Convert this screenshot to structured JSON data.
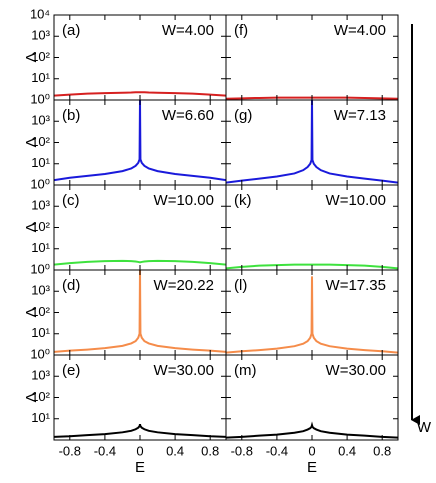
{
  "chart_data": [
    {
      "type": "line",
      "label": "(a)",
      "annotation": "W=4.00",
      "ylabel": "Λ",
      "color": "#d62020",
      "log_y": true,
      "x": [
        -0.98,
        -0.8,
        -0.6,
        -0.4,
        -0.2,
        -0.1,
        -0.05,
        -0.02,
        -0.005,
        0,
        0.005,
        0.02,
        0.05,
        0.1,
        0.2,
        0.4,
        0.6,
        0.8,
        0.98
      ],
      "values": [
        1.6,
        1.8,
        2.0,
        2.1,
        2.2,
        2.25,
        2.3,
        2.3,
        2.3,
        2.3,
        2.3,
        2.3,
        2.3,
        2.25,
        2.2,
        2.1,
        2.0,
        1.8,
        1.6
      ],
      "xlim": [
        -0.98,
        0.98
      ],
      "ylim": [
        1,
        10000
      ],
      "yticks": [
        {
          "value": 1,
          "label": "10⁰"
        },
        {
          "value": 10,
          "label": "10¹"
        },
        {
          "value": 100,
          "label": "10²"
        },
        {
          "value": 1000,
          "label": "10³"
        },
        {
          "value": 10000,
          "label": "10⁴"
        }
      ]
    },
    {
      "type": "line",
      "label": "(b)",
      "annotation": "W=6.60",
      "ylabel": "Λ",
      "color": "#1a1adb",
      "log_y": true,
      "x": [
        -0.98,
        -0.8,
        -0.6,
        -0.4,
        -0.2,
        -0.1,
        -0.05,
        -0.02,
        -0.005,
        0,
        0.005,
        0.02,
        0.05,
        0.1,
        0.2,
        0.4,
        0.6,
        0.8,
        0.98
      ],
      "values": [
        1.7,
        2.2,
        2.7,
        3.3,
        4.5,
        6,
        8,
        11,
        16,
        10000,
        16,
        11,
        8,
        6,
        4.5,
        3.3,
        2.7,
        2.2,
        1.7
      ],
      "xlim": [
        -0.98,
        0.98
      ],
      "ylim": [
        1,
        10000
      ],
      "yticks": [
        {
          "value": 1,
          "label": "10⁰"
        },
        {
          "value": 10,
          "label": "10¹"
        },
        {
          "value": 100,
          "label": "10²"
        },
        {
          "value": 1000,
          "label": "10³"
        }
      ]
    },
    {
      "type": "line",
      "label": "(c)",
      "annotation": "W=10.00",
      "ylabel": "Λ",
      "color": "#3ee23e",
      "log_y": true,
      "x": [
        -0.98,
        -0.8,
        -0.6,
        -0.4,
        -0.2,
        -0.1,
        -0.05,
        -0.02,
        -0.005,
        0,
        0.005,
        0.02,
        0.05,
        0.1,
        0.2,
        0.4,
        0.6,
        0.8,
        0.98
      ],
      "values": [
        1.8,
        2.1,
        2.4,
        2.6,
        2.7,
        2.6,
        2.5,
        2.4,
        2.3,
        2.3,
        2.3,
        2.4,
        2.5,
        2.6,
        2.7,
        2.6,
        2.4,
        2.1,
        1.8
      ],
      "xlim": [
        -0.98,
        0.98
      ],
      "ylim": [
        1,
        10000
      ],
      "yticks": [
        {
          "value": 1,
          "label": "10⁰"
        },
        {
          "value": 10,
          "label": "10¹"
        },
        {
          "value": 100,
          "label": "10²"
        },
        {
          "value": 1000,
          "label": "10³"
        }
      ]
    },
    {
      "type": "line",
      "label": "(d)",
      "annotation": "W=20.22",
      "ylabel": "Λ",
      "color": "#f58c4a",
      "log_y": true,
      "x": [
        -0.98,
        -0.8,
        -0.6,
        -0.4,
        -0.2,
        -0.1,
        -0.05,
        -0.02,
        -0.005,
        0,
        0.005,
        0.02,
        0.05,
        0.1,
        0.2,
        0.4,
        0.6,
        0.8,
        0.98
      ],
      "values": [
        1.4,
        1.6,
        1.8,
        2.1,
        2.7,
        3.5,
        4.5,
        6.5,
        10,
        10000,
        10,
        6.5,
        4.5,
        3.5,
        2.7,
        2.1,
        1.8,
        1.6,
        1.4
      ],
      "xlim": [
        -0.98,
        0.98
      ],
      "ylim": [
        1,
        10000
      ],
      "yticks": [
        {
          "value": 1,
          "label": "10⁰"
        },
        {
          "value": 10,
          "label": "10¹"
        },
        {
          "value": 100,
          "label": "10²"
        },
        {
          "value": 1000,
          "label": "10³"
        }
      ]
    },
    {
      "type": "line",
      "label": "(e)",
      "annotation": "W=30.00",
      "ylabel": "Λ",
      "xlabel": "E",
      "color": "#000000",
      "log_y": true,
      "x": [
        -0.98,
        -0.8,
        -0.6,
        -0.4,
        -0.2,
        -0.1,
        -0.05,
        -0.02,
        -0.005,
        0,
        0.005,
        0.02,
        0.05,
        0.1,
        0.2,
        0.4,
        0.6,
        0.8,
        0.98
      ],
      "values": [
        1.4,
        1.5,
        1.7,
        1.9,
        2.3,
        2.7,
        3.2,
        3.8,
        4.5,
        5.5,
        4.5,
        3.8,
        3.2,
        2.7,
        2.3,
        1.9,
        1.7,
        1.5,
        1.4
      ],
      "xlim": [
        -0.98,
        0.98
      ],
      "ylim": [
        1,
        10000
      ],
      "xticks": [
        -0.8,
        -0.4,
        0,
        0.4,
        0.8
      ],
      "yticks": [
        {
          "value": 10,
          "label": "10¹"
        },
        {
          "value": 100,
          "label": "10²"
        },
        {
          "value": 1000,
          "label": "10³"
        }
      ]
    },
    {
      "type": "line",
      "label": "(f)",
      "annotation": "W=4.00",
      "color": "#d62020",
      "log_y": true,
      "x": [
        -0.98,
        -0.8,
        -0.6,
        -0.4,
        -0.2,
        -0.1,
        -0.05,
        -0.02,
        -0.005,
        0,
        0.005,
        0.02,
        0.05,
        0.1,
        0.2,
        0.4,
        0.6,
        0.8,
        0.98
      ],
      "values": [
        1.15,
        1.2,
        1.25,
        1.3,
        1.3,
        1.3,
        1.3,
        1.3,
        1.3,
        1.3,
        1.3,
        1.3,
        1.3,
        1.3,
        1.3,
        1.3,
        1.25,
        1.2,
        1.15
      ],
      "xlim": [
        -0.98,
        0.98
      ],
      "ylim": [
        1,
        10000
      ]
    },
    {
      "type": "line",
      "label": "(g)",
      "annotation": "W=7.13",
      "color": "#1a1adb",
      "log_y": true,
      "x": [
        -0.98,
        -0.8,
        -0.6,
        -0.4,
        -0.2,
        -0.1,
        -0.05,
        -0.02,
        -0.005,
        0,
        0.005,
        0.02,
        0.05,
        0.1,
        0.2,
        0.4,
        0.6,
        0.8,
        0.98
      ],
      "values": [
        1.3,
        1.6,
        2,
        2.5,
        3.5,
        5,
        7,
        10,
        15,
        10000,
        15,
        10,
        7,
        5,
        3.5,
        2.5,
        2,
        1.6,
        1.3
      ],
      "xlim": [
        -0.98,
        0.98
      ],
      "ylim": [
        1,
        10000
      ]
    },
    {
      "type": "line",
      "label": "(k)",
      "annotation": "W=10.00",
      "color": "#3ee23e",
      "log_y": true,
      "x": [
        -0.98,
        -0.8,
        -0.6,
        -0.4,
        -0.2,
        -0.1,
        -0.05,
        -0.02,
        -0.005,
        0,
        0.005,
        0.02,
        0.05,
        0.1,
        0.2,
        0.4,
        0.6,
        0.8,
        0.98
      ],
      "values": [
        1.2,
        1.4,
        1.6,
        1.7,
        1.8,
        1.8,
        1.8,
        1.8,
        1.8,
        1.8,
        1.8,
        1.8,
        1.8,
        1.8,
        1.8,
        1.7,
        1.6,
        1.4,
        1.2
      ],
      "xlim": [
        -0.98,
        0.98
      ],
      "ylim": [
        1,
        10000
      ]
    },
    {
      "type": "line",
      "label": "(l)",
      "annotation": "W=17.35",
      "color": "#f58c4a",
      "log_y": true,
      "x": [
        -0.98,
        -0.8,
        -0.6,
        -0.4,
        -0.2,
        -0.1,
        -0.05,
        -0.02,
        -0.005,
        0,
        0.005,
        0.02,
        0.05,
        0.1,
        0.2,
        0.4,
        0.6,
        0.8,
        0.98
      ],
      "values": [
        1.3,
        1.5,
        1.7,
        2,
        2.6,
        3.4,
        4.5,
        6.5,
        10,
        5000,
        10,
        6.5,
        4.5,
        3.4,
        2.6,
        2,
        1.7,
        1.5,
        1.3
      ],
      "xlim": [
        -0.98,
        0.98
      ],
      "ylim": [
        1,
        10000
      ]
    },
    {
      "type": "line",
      "label": "(m)",
      "annotation": "W=30.00",
      "xlabel": "E",
      "color": "#000000",
      "log_y": true,
      "x": [
        -0.98,
        -0.8,
        -0.6,
        -0.4,
        -0.2,
        -0.1,
        -0.05,
        -0.02,
        -0.005,
        0,
        0.005,
        0.02,
        0.05,
        0.1,
        0.2,
        0.4,
        0.6,
        0.8,
        0.98
      ],
      "values": [
        1.3,
        1.4,
        1.6,
        1.8,
        2.2,
        2.6,
        3.1,
        3.6,
        4.2,
        5,
        4.2,
        3.6,
        3.1,
        2.6,
        2.2,
        1.8,
        1.6,
        1.4,
        1.3
      ],
      "xlim": [
        -0.98,
        0.98
      ],
      "ylim": [
        1,
        10000
      ],
      "xticks": [
        -0.8,
        -0.4,
        0,
        0.4,
        0.8
      ]
    }
  ],
  "arrow_label": "W"
}
